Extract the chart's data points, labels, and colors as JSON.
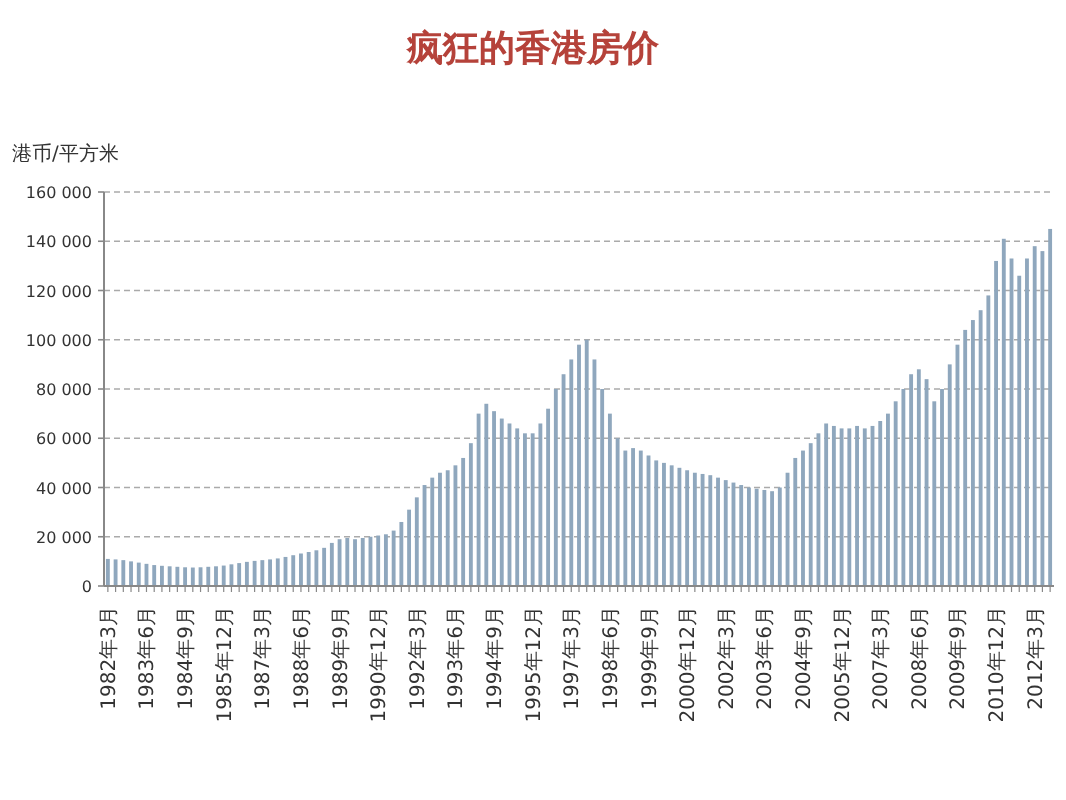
{
  "chart_data": {
    "type": "bar",
    "title": "疯狂的香港房价",
    "ylabel": "港币/平方米",
    "categories": [
      "1982年3月",
      null,
      null,
      null,
      null,
      "1983年6月",
      null,
      null,
      null,
      null,
      "1984年9月",
      null,
      null,
      null,
      null,
      "1985年12月",
      null,
      null,
      null,
      null,
      "1987年3月",
      null,
      null,
      null,
      null,
      "1988年6月",
      null,
      null,
      null,
      null,
      "1989年9月",
      null,
      null,
      null,
      null,
      "1990年12月",
      null,
      null,
      null,
      null,
      "1992年3月",
      null,
      null,
      null,
      null,
      "1993年6月",
      null,
      null,
      null,
      null,
      "1994年9月",
      null,
      null,
      null,
      null,
      "1995年12月",
      null,
      null,
      null,
      null,
      "1997年3月",
      null,
      null,
      null,
      null,
      "1998年6月",
      null,
      null,
      null,
      null,
      "1999年9月",
      null,
      null,
      null,
      null,
      "2000年12月",
      null,
      null,
      null,
      null,
      "2002年3月",
      null,
      null,
      null,
      null,
      "2003年6月",
      null,
      null,
      null,
      null,
      "2004年9月",
      null,
      null,
      null,
      null,
      "2005年12月",
      null,
      null,
      null,
      null,
      "2007年3月",
      null,
      null,
      null,
      null,
      "2008年6月",
      null,
      null,
      null,
      null,
      "2009年9月",
      null,
      null,
      null,
      null,
      "2010年12月",
      null,
      null,
      null,
      null,
      "2012年3月",
      null,
      null
    ],
    "values": [
      11000,
      10800,
      10500,
      10000,
      9500,
      9000,
      8500,
      8200,
      8000,
      7800,
      7600,
      7500,
      7600,
      7800,
      8000,
      8300,
      8800,
      9300,
      9800,
      10200,
      10500,
      10800,
      11200,
      11800,
      12500,
      13200,
      13800,
      14500,
      15500,
      17500,
      19000,
      19500,
      19000,
      19500,
      20000,
      20500,
      21000,
      22500,
      26000,
      31000,
      36000,
      41000,
      44000,
      46000,
      47000,
      49000,
      52000,
      58000,
      70000,
      74000,
      71000,
      68000,
      66000,
      64000,
      62000,
      62000,
      66000,
      72000,
      80000,
      86000,
      92000,
      98000,
      100000,
      92000,
      80000,
      70000,
      60000,
      55000,
      56000,
      55000,
      53000,
      51000,
      50000,
      49000,
      48000,
      47000,
      46000,
      45500,
      45000,
      44000,
      43000,
      42000,
      41000,
      40000,
      39500,
      39000,
      38500,
      40000,
      46000,
      52000,
      55000,
      58000,
      62000,
      66000,
      65000,
      64000,
      64000,
      65000,
      64000,
      65000,
      67000,
      70000,
      75000,
      80000,
      86000,
      88000,
      84000,
      75000,
      80000,
      90000,
      98000,
      104000,
      108000,
      112000,
      118000,
      132000,
      141000,
      133000,
      126000,
      133000,
      138000,
      136000,
      145000
    ],
    "color": "#8fa7bd",
    "ylim": [
      0,
      160000
    ],
    "yticks": [
      {
        "value": 0,
        "label": "0"
      },
      {
        "value": 20000,
        "label": "20 000"
      },
      {
        "value": 40000,
        "label": "40 000"
      },
      {
        "value": 60000,
        "label": "60 000"
      },
      {
        "value": 80000,
        "label": "80 000"
      },
      {
        "value": 100000,
        "label": "100 000"
      },
      {
        "value": 120000,
        "label": "120 000"
      },
      {
        "value": 140000,
        "label": "140 000"
      },
      {
        "value": 160000,
        "label": "160 000"
      }
    ],
    "grid": "y"
  }
}
